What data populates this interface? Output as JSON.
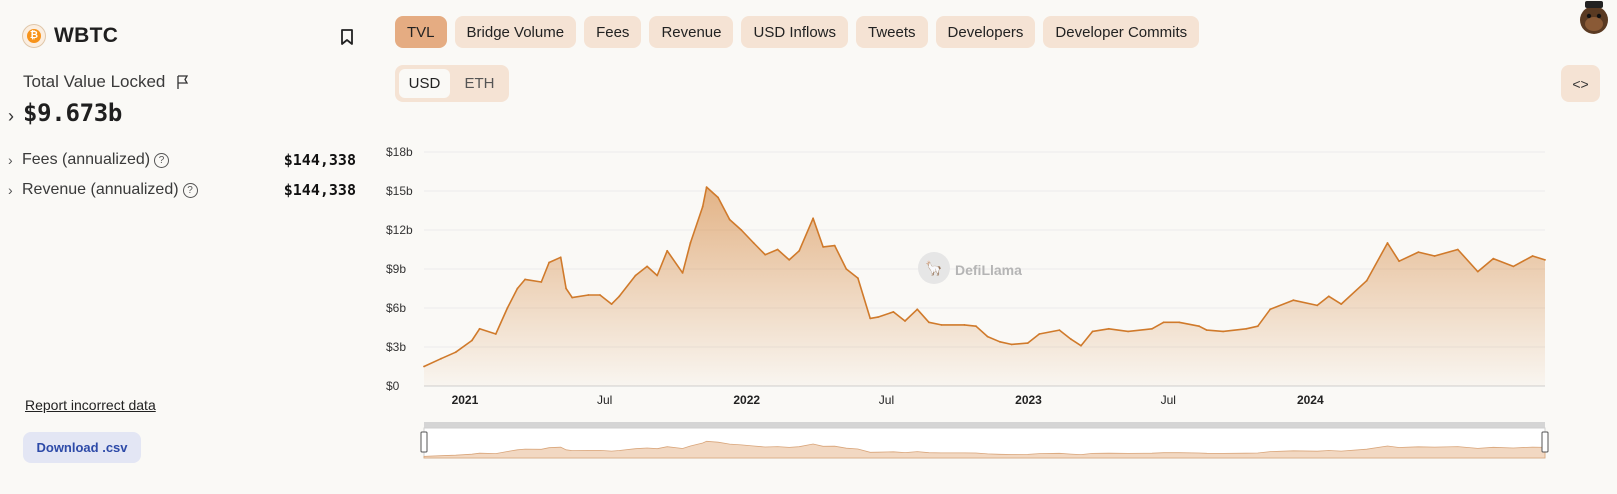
{
  "protocol": {
    "name": "WBTC"
  },
  "tvl": {
    "label": "Total Value Locked",
    "value": "$9.673b"
  },
  "stats": [
    {
      "label": "Fees (annualized)",
      "value": "$144,338"
    },
    {
      "label": "Revenue (annualized)",
      "value": "$144,338"
    }
  ],
  "links": {
    "report": "Report incorrect data",
    "download": "Download .csv"
  },
  "tabs": [
    "TVL",
    "Bridge Volume",
    "Fees",
    "Revenue",
    "USD Inflows",
    "Tweets",
    "Developers",
    "Developer Commits"
  ],
  "active_tab": "TVL",
  "currency_toggle": {
    "options": [
      "USD",
      "ETH"
    ],
    "selected": "USD"
  },
  "embed_label": "<>",
  "watermark": "DefiLlama",
  "colors": {
    "accent": "#d07a2b",
    "tab_bg": "#f5e3d4",
    "tab_active": "#e5ac82",
    "download_text": "#2d4aa8"
  },
  "icons": [
    "bitcoin-icon",
    "bookmark-icon",
    "flag-icon",
    "chevron-right-icon",
    "help-circle-icon",
    "code-icon",
    "avatar-icon"
  ],
  "chart_data": {
    "type": "area",
    "ylabel": "",
    "xlabel": "",
    "ylim": [
      0,
      18
    ],
    "y_unit": "$ billions",
    "yticks": [
      0,
      3,
      6,
      9,
      12,
      15,
      18
    ],
    "ytick_labels": [
      "$0",
      "$3b",
      "$6b",
      "$9b",
      "$12b",
      "$15b",
      "$18b"
    ],
    "xlim": [
      "2020-11-09",
      "2024-10-31"
    ],
    "xticks": [
      {
        "date": "2021-01-01",
        "label": "2021",
        "bold": true
      },
      {
        "date": "2021-07-01",
        "label": "Jul",
        "bold": false
      },
      {
        "date": "2022-01-01",
        "label": "2022",
        "bold": true
      },
      {
        "date": "2022-07-01",
        "label": "Jul",
        "bold": false
      },
      {
        "date": "2023-01-01",
        "label": "2023",
        "bold": true
      },
      {
        "date": "2023-07-01",
        "label": "Jul",
        "bold": false
      },
      {
        "date": "2024-01-01",
        "label": "2024",
        "bold": true
      }
    ],
    "grid": true,
    "series": [
      {
        "x": [
          "2020-11-09",
          "2020-12-01",
          "2020-12-20",
          "2021-01-10",
          "2021-01-20",
          "2021-02-10",
          "2021-02-25",
          "2021-03-10",
          "2021-03-20",
          "2021-04-10",
          "2021-04-20",
          "2021-05-05",
          "2021-05-12",
          "2021-05-20",
          "2021-06-10",
          "2021-06-25",
          "2021-07-10",
          "2021-07-20",
          "2021-08-10",
          "2021-08-25",
          "2021-09-07",
          "2021-09-20",
          "2021-10-10",
          "2021-10-20",
          "2021-11-05",
          "2021-11-10",
          "2021-11-25",
          "2021-12-10",
          "2021-12-25",
          "2022-01-10",
          "2022-01-25",
          "2022-02-10",
          "2022-02-25",
          "2022-03-10",
          "2022-03-28",
          "2022-04-10",
          "2022-04-25",
          "2022-05-10",
          "2022-05-25",
          "2022-06-10",
          "2022-06-20",
          "2022-07-10",
          "2022-07-25",
          "2022-08-10",
          "2022-08-25",
          "2022-09-10",
          "2022-10-10",
          "2022-10-25",
          "2022-11-09",
          "2022-11-25",
          "2022-12-10",
          "2022-12-31",
          "2023-01-15",
          "2023-02-10",
          "2023-02-25",
          "2023-03-10",
          "2023-03-25",
          "2023-04-15",
          "2023-05-10",
          "2023-06-10",
          "2023-06-25",
          "2023-07-15",
          "2023-08-10",
          "2023-08-20",
          "2023-09-10",
          "2023-10-10",
          "2023-10-25",
          "2023-11-10",
          "2023-12-10",
          "2024-01-10",
          "2024-01-25",
          "2024-02-10",
          "2024-03-14",
          "2024-04-10",
          "2024-04-25",
          "2024-05-20",
          "2024-06-10",
          "2024-07-10",
          "2024-08-05",
          "2024-08-25",
          "2024-09-20",
          "2024-10-15",
          "2024-10-31"
        ],
        "y": [
          1.5,
          2.1,
          2.6,
          3.5,
          4.4,
          4.0,
          6.0,
          7.5,
          8.2,
          8.0,
          9.5,
          9.9,
          7.5,
          6.8,
          7.0,
          7.0,
          6.3,
          6.9,
          8.5,
          9.2,
          8.5,
          10.4,
          8.7,
          11.0,
          13.8,
          15.3,
          14.5,
          12.8,
          12.0,
          11.0,
          10.1,
          10.5,
          9.7,
          10.4,
          12.9,
          10.7,
          10.8,
          9.0,
          8.3,
          5.2,
          5.3,
          5.7,
          5.0,
          5.9,
          4.9,
          4.7,
          4.7,
          4.6,
          3.8,
          3.4,
          3.2,
          3.3,
          4.0,
          4.3,
          3.6,
          3.1,
          4.2,
          4.4,
          4.2,
          4.4,
          4.9,
          4.9,
          4.6,
          4.3,
          4.2,
          4.4,
          4.6,
          5.9,
          6.6,
          6.2,
          6.9,
          6.3,
          8.1,
          11.0,
          9.6,
          10.3,
          10.0,
          10.5,
          8.8,
          9.8,
          9.2,
          10.0,
          9.7
        ]
      }
    ]
  }
}
